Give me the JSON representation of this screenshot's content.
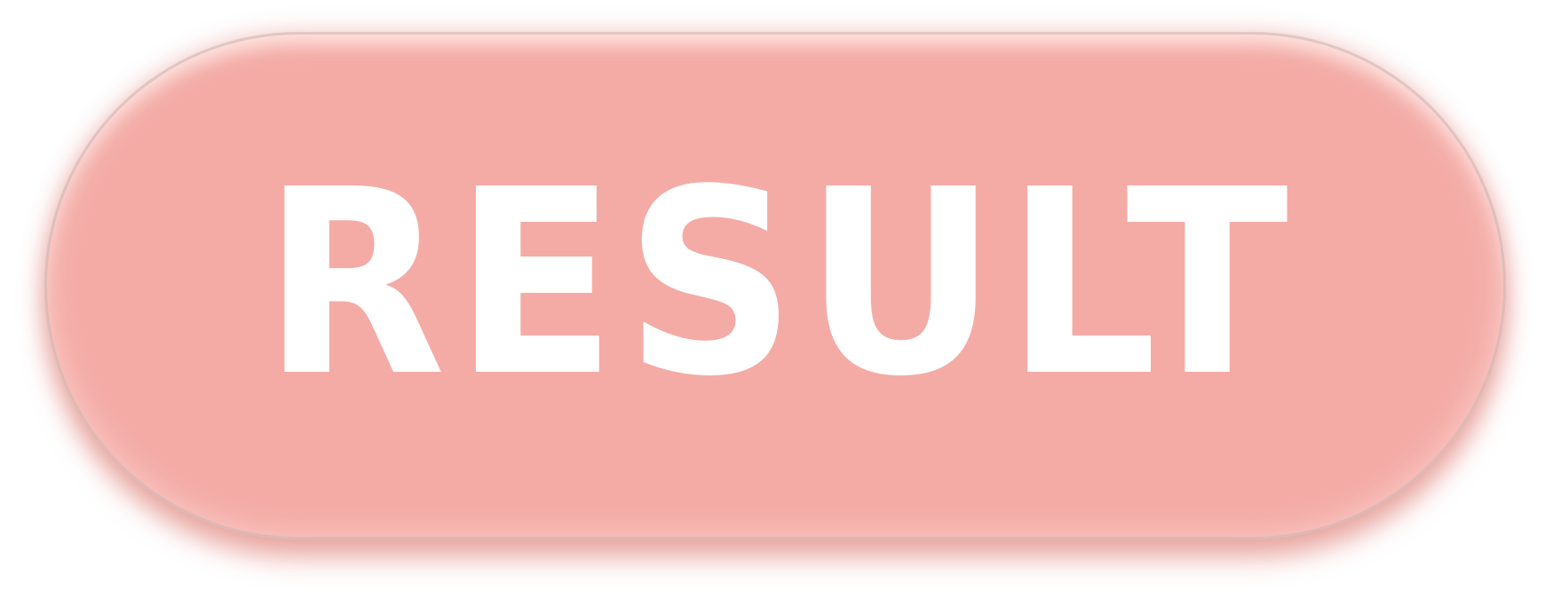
{
  "button": {
    "label": "RESULT",
    "background_color": "#f4aba6",
    "text_color": "#ffffff"
  }
}
